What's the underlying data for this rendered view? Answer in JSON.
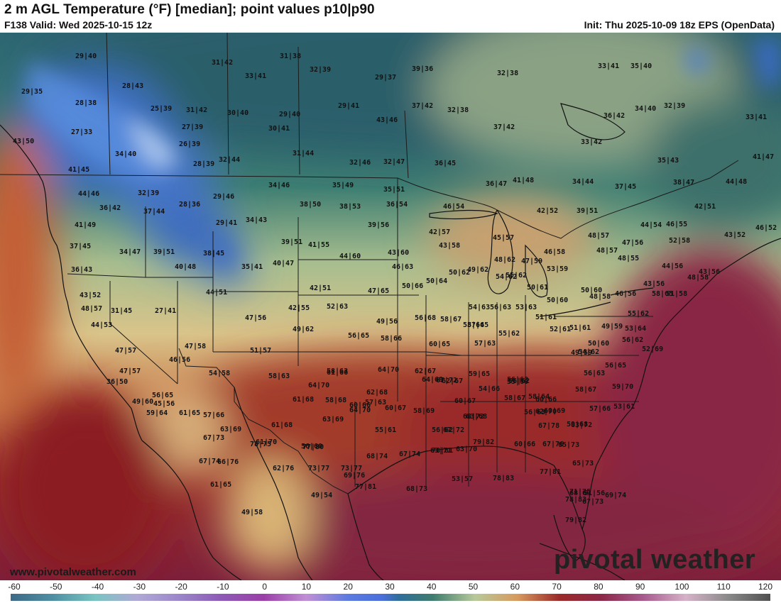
{
  "header": {
    "title": "2 m AGL Temperature (°F) [median]; point values p10|p90",
    "valid": "F138 Valid: Wed 2025-10-15 12z",
    "init": "Init: Thu 2025-10-09 18z EPS (OpenData)"
  },
  "watermark_url": "www.pivotalweather.com",
  "brand": "pivotal weather",
  "colorbar": {
    "unit": "°F",
    "ticks": [
      "-60",
      "-50",
      "-40",
      "-30",
      "-20",
      "-10",
      "0",
      "10",
      "20",
      "30",
      "40",
      "50",
      "60",
      "70",
      "80",
      "90",
      "100",
      "110",
      "120"
    ],
    "stops": [
      {
        "v": -60,
        "c": "#3d6a88"
      },
      {
        "v": -50,
        "c": "#4f8fa3"
      },
      {
        "v": -40,
        "c": "#79c4c2"
      },
      {
        "v": -30,
        "c": "#b0a9d6"
      },
      {
        "v": -20,
        "c": "#9b86c9"
      },
      {
        "v": -10,
        "c": "#8d59b6"
      },
      {
        "v": 0,
        "c": "#9b3fa8"
      },
      {
        "v": 10,
        "c": "#c08fd4"
      },
      {
        "v": 20,
        "c": "#5c7be0"
      },
      {
        "v": 28,
        "c": "#4b6edb"
      },
      {
        "v": 32,
        "c": "#2f6f9a"
      },
      {
        "v": 40,
        "c": "#3f7c6f"
      },
      {
        "v": 50,
        "c": "#b7c99a"
      },
      {
        "v": 60,
        "c": "#d79a5e"
      },
      {
        "v": 70,
        "c": "#9b2a2a"
      },
      {
        "v": 80,
        "c": "#8c2848"
      },
      {
        "v": 90,
        "c": "#a85b8f"
      },
      {
        "v": 100,
        "c": "#d6b2c8"
      },
      {
        "v": 110,
        "c": "#8a8a8a"
      },
      {
        "v": 120,
        "c": "#505050"
      }
    ]
  },
  "point_values": [
    "29|40",
    "31|42",
    "31|38",
    "32|39",
    "29|37",
    "39|36",
    "32|38",
    "33|41",
    "35|40",
    "29|35",
    "28|38",
    "28|43",
    "33|41",
    "29|41",
    "37|42",
    "36|42",
    "34|40",
    "32|39",
    "25|39",
    "31|42",
    "30|40",
    "29|40",
    "43|46",
    "32|38",
    "37|42",
    "33|42",
    "33|41",
    "27|33",
    "27|39",
    "30|41",
    "43|50",
    "26|39",
    "34|40",
    "28|39",
    "32|44",
    "31|44",
    "32|46",
    "32|47",
    "36|45",
    "35|43",
    "41|47",
    "41|45",
    "34|46",
    "35|49",
    "35|51",
    "36|47",
    "41|48",
    "34|44",
    "37|45",
    "38|47",
    "44|48",
    "44|46",
    "32|39",
    "29|46",
    "38|50",
    "38|53",
    "36|54",
    "46|54",
    "42|52",
    "39|51",
    "42|51",
    "36|42",
    "37|44",
    "28|36",
    "29|41",
    "34|43",
    "39|56",
    "42|57",
    "48|57",
    "44|54",
    "46|55",
    "46|52",
    "41|49",
    "39|51",
    "39|51",
    "41|55",
    "43|58",
    "45|57",
    "47|56",
    "52|58",
    "43|52",
    "37|45",
    "34|47",
    "38|45",
    "44|60",
    "43|60",
    "48|62",
    "46|58",
    "48|57",
    "48|55",
    "36|43",
    "40|48",
    "35|41",
    "40|47",
    "46|63",
    "49|62",
    "47|59",
    "53|59",
    "44|56",
    "43|52",
    "42|51",
    "47|65",
    "50|66",
    "50|64",
    "50|62",
    "54|62",
    "50|60",
    "48|58",
    "43|56",
    "48|57",
    "31|45",
    "27|41",
    "44|51",
    "42|55",
    "52|63",
    "54|63",
    "50|61",
    "55|62",
    "46|56",
    "43|56",
    "51|58",
    "47|56",
    "49|56",
    "56|68",
    "58|67",
    "57|65",
    "56|63",
    "53|63",
    "50|60",
    "48|58",
    "55|62",
    "58|65",
    "44|53",
    "49|62",
    "56|65",
    "58|66",
    "58|64",
    "51|61",
    "52|61",
    "51|61",
    "49|59",
    "53|64",
    "47|57",
    "47|58",
    "51|57",
    "60|65",
    "57|63",
    "55|62",
    "50|60",
    "56|62",
    "46|56",
    "54|58",
    "58|63",
    "61|66",
    "49|59",
    "56|63",
    "54|62",
    "52|69",
    "47|57",
    "36|50",
    "64|70",
    "62|67",
    "59|65",
    "56|63",
    "56|65",
    "45|56",
    "54|66",
    "55|60",
    "58|64",
    "64|70",
    "62|68",
    "58|63",
    "62|67",
    "56|62",
    "58|67",
    "59|70",
    "49|60",
    "56|65",
    "58|68",
    "57|63",
    "64|69",
    "67|72",
    "60|66",
    "60|66",
    "57|66",
    "59|68",
    "53|61",
    "59|64",
    "57|66",
    "61|68",
    "64|70",
    "60|67",
    "60|67",
    "58|67",
    "62|70",
    "61|65",
    "63|69",
    "56|63",
    "63|69",
    "58|69",
    "68|72",
    "63|68",
    "60|69",
    "63|72",
    "61|68",
    "55|61",
    "56|62",
    "67|72",
    "67|78",
    "63|70",
    "63|71",
    "60|66",
    "67|76",
    "65|73",
    "67|73",
    "78|75",
    "67|74",
    "79|82",
    "78|81",
    "77|81",
    "65|73",
    "67|74",
    "56|60",
    "61|70",
    "77|80",
    "68|74",
    "73|77",
    "66|76",
    "61|65",
    "62|76",
    "69|76",
    "68|69",
    "73|77",
    "67|73",
    "77|81",
    "68|73",
    "53|57",
    "78|83",
    "71|75",
    "79|82",
    "51|56",
    "49|54",
    "69|74",
    "78|83",
    "49|58"
  ]
}
